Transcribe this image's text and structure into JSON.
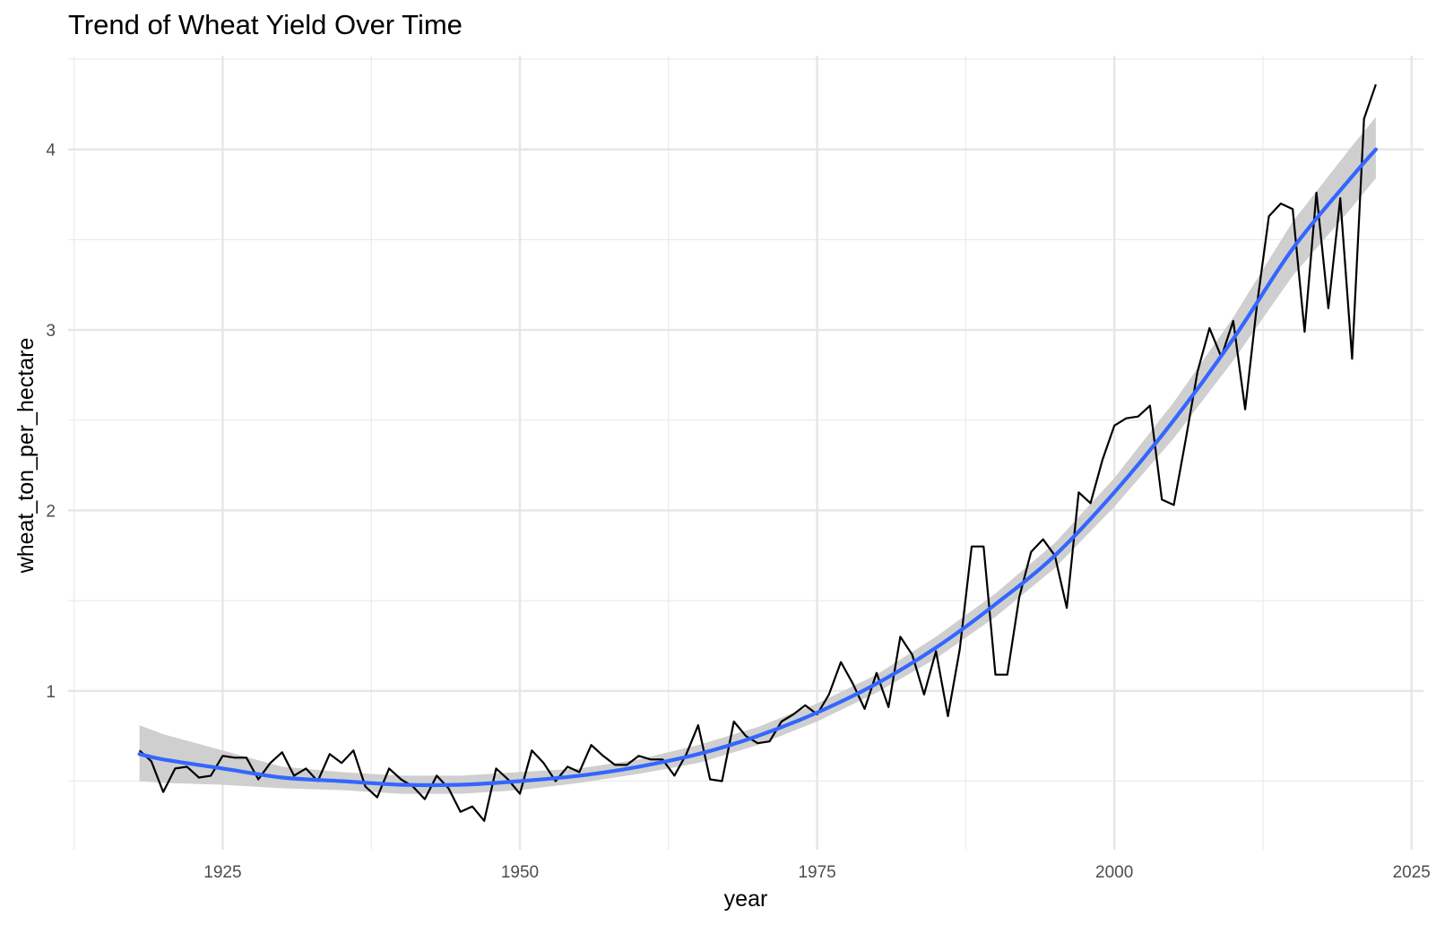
{
  "chart_data": {
    "type": "line",
    "title": "Trend of Wheat Yield Over Time",
    "xlabel": "year",
    "ylabel": "wheat_ton_per_hectare",
    "xlim": [
      1912,
      2026
    ],
    "ylim": [
      0.12,
      4.52
    ],
    "x_ticks": [
      1925,
      1950,
      1975,
      2000,
      2025
    ],
    "x_tick_labels": [
      "1925",
      "1950",
      "1975",
      "2000",
      "2025"
    ],
    "y_ticks": [
      1,
      2,
      3,
      4
    ],
    "y_tick_labels": [
      "1",
      "2",
      "3",
      "4"
    ],
    "grid": true,
    "legend": "none",
    "series": [
      {
        "type": "line",
        "color": "#000000",
        "x": [
          1918,
          1919,
          1920,
          1921,
          1922,
          1923,
          1924,
          1925,
          1926,
          1927,
          1928,
          1929,
          1930,
          1931,
          1932,
          1933,
          1934,
          1935,
          1936,
          1937,
          1938,
          1939,
          1940,
          1941,
          1942,
          1943,
          1944,
          1945,
          1946,
          1947,
          1948,
          1949,
          1950,
          1951,
          1952,
          1953,
          1954,
          1955,
          1956,
          1957,
          1958,
          1959,
          1960,
          1961,
          1962,
          1963,
          1964,
          1965,
          1966,
          1967,
          1968,
          1969,
          1970,
          1971,
          1972,
          1973,
          1974,
          1975,
          1976,
          1977,
          1978,
          1979,
          1980,
          1981,
          1982,
          1983,
          1984,
          1985,
          1986,
          1987,
          1988,
          1989,
          1990,
          1991,
          1992,
          1993,
          1994,
          1995,
          1996,
          1997,
          1998,
          1999,
          2000,
          2001,
          2002,
          2003,
          2004,
          2005,
          2006,
          2007,
          2008,
          2009,
          2010,
          2011,
          2012,
          2013,
          2014,
          2015,
          2016,
          2017,
          2018,
          2019,
          2020,
          2021,
          2022
        ],
        "y": [
          0.67,
          0.61,
          0.44,
          0.57,
          0.58,
          0.52,
          0.53,
          0.64,
          0.63,
          0.63,
          0.51,
          0.6,
          0.66,
          0.53,
          0.57,
          0.5,
          0.65,
          0.6,
          0.67,
          0.47,
          0.41,
          0.57,
          0.51,
          0.47,
          0.4,
          0.53,
          0.46,
          0.33,
          0.36,
          0.28,
          0.57,
          0.51,
          0.43,
          0.67,
          0.6,
          0.5,
          0.58,
          0.55,
          0.7,
          0.64,
          0.59,
          0.59,
          0.64,
          0.62,
          0.62,
          0.53,
          0.65,
          0.81,
          0.51,
          0.5,
          0.83,
          0.75,
          0.71,
          0.72,
          0.83,
          0.87,
          0.92,
          0.87,
          0.98,
          1.16,
          1.04,
          0.9,
          1.1,
          0.91,
          1.3,
          1.2,
          0.98,
          1.22,
          0.86,
          1.23,
          1.8,
          1.8,
          1.09,
          1.09,
          1.52,
          1.77,
          1.84,
          1.75,
          1.46,
          2.1,
          2.04,
          2.28,
          2.47,
          2.51,
          2.52,
          2.58,
          2.06,
          2.03,
          2.39,
          2.77,
          3.01,
          2.85,
          3.05,
          2.56,
          3.14,
          3.63,
          3.7,
          3.67,
          2.99,
          3.76,
          3.12,
          3.73,
          2.84,
          4.17,
          4.36
        ]
      },
      {
        "type": "smooth",
        "color": "#3366FF",
        "ribbon_color": "#cccccc",
        "x": [
          1918,
          1920,
          1925,
          1930,
          1935,
          1940,
          1945,
          1950,
          1955,
          1960,
          1965,
          1970,
          1975,
          1980,
          1985,
          1990,
          1995,
          2000,
          2005,
          2010,
          2015,
          2020,
          2022
        ],
        "y": [
          0.65,
          0.62,
          0.57,
          0.52,
          0.5,
          0.48,
          0.48,
          0.5,
          0.53,
          0.58,
          0.65,
          0.75,
          0.88,
          1.04,
          1.24,
          1.48,
          1.75,
          2.1,
          2.5,
          2.95,
          3.45,
          3.85,
          4.0
        ],
        "lower": [
          0.5,
          0.49,
          0.48,
          0.46,
          0.45,
          0.43,
          0.43,
          0.45,
          0.49,
          0.54,
          0.6,
          0.7,
          0.83,
          0.99,
          1.18,
          1.41,
          1.68,
          2.02,
          2.4,
          2.83,
          3.3,
          3.68,
          3.84
        ],
        "upper": [
          0.81,
          0.76,
          0.67,
          0.58,
          0.55,
          0.53,
          0.53,
          0.55,
          0.57,
          0.62,
          0.7,
          0.8,
          0.93,
          1.09,
          1.3,
          1.54,
          1.82,
          2.18,
          2.6,
          3.07,
          3.6,
          4.02,
          4.18
        ]
      }
    ]
  }
}
